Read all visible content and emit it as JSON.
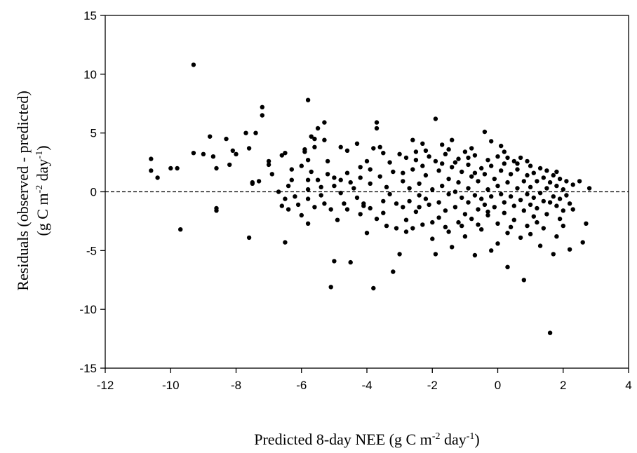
{
  "chart_data": {
    "type": "scatter",
    "xlabel": {
      "main": "Predicted 8-day NEE (g C m",
      "sup1": "-2",
      "mid": " day",
      "sup2": "-1",
      "end": ")"
    },
    "ylabel": {
      "line1": "Residuals (observed - predicted)",
      "line2": {
        "main": "(g C m",
        "sup1": "-2",
        "mid": " day",
        "sup2": "-1",
        "end": ")"
      }
    },
    "xlim": [
      -12,
      4
    ],
    "ylim": [
      -15,
      15
    ],
    "x_ticks": [
      "-12",
      "-10",
      "-8",
      "-6",
      "-4",
      "-2",
      "0",
      "2",
      "4"
    ],
    "y_ticks": [
      "15",
      "10",
      "5",
      "0",
      "-5",
      "-10",
      "-15"
    ],
    "reference_line": {
      "y": 0,
      "style": "dashed"
    },
    "marker_color": "#000000",
    "grid": false,
    "points_note_free": true,
    "points": [
      [
        -10.6,
        2.8
      ],
      [
        -10.6,
        1.8
      ],
      [
        -10.4,
        1.2
      ],
      [
        -10.0,
        2.0
      ],
      [
        -9.8,
        2.0
      ],
      [
        -9.7,
        -3.2
      ],
      [
        -9.3,
        10.8
      ],
      [
        -9.3,
        3.3
      ],
      [
        -9.0,
        3.2
      ],
      [
        -8.8,
        4.7
      ],
      [
        -8.7,
        3.0
      ],
      [
        -8.6,
        2.0
      ],
      [
        -8.6,
        -1.4
      ],
      [
        -8.6,
        -1.6
      ],
      [
        -8.3,
        4.5
      ],
      [
        -8.2,
        2.3
      ],
      [
        -8.1,
        3.5
      ],
      [
        -8.0,
        3.2
      ],
      [
        -7.7,
        5.0
      ],
      [
        -7.6,
        3.7
      ],
      [
        -7.6,
        -3.9
      ],
      [
        -7.5,
        0.8
      ],
      [
        -7.5,
        0.7
      ],
      [
        -7.4,
        5.0
      ],
      [
        -7.3,
        0.9
      ],
      [
        -7.2,
        7.2
      ],
      [
        -7.2,
        6.5
      ],
      [
        -7.0,
        2.6
      ],
      [
        -7.0,
        2.3
      ],
      [
        -6.9,
        1.5
      ],
      [
        -6.7,
        0.0
      ],
      [
        -6.6,
        3.1
      ],
      [
        -6.5,
        3.3
      ],
      [
        -6.5,
        -0.6
      ],
      [
        -6.6,
        -1.2
      ],
      [
        -6.4,
        0.5
      ],
      [
        -6.4,
        -1.5
      ],
      [
        -6.5,
        -4.3
      ],
      [
        -6.3,
        1.9
      ],
      [
        -6.3,
        1.0
      ],
      [
        -6.2,
        -0.4
      ],
      [
        -6.1,
        -1.1
      ],
      [
        -6.0,
        -2.0
      ],
      [
        -6.0,
        2.2
      ],
      [
        -5.9,
        3.6
      ],
      [
        -5.9,
        3.4
      ],
      [
        -5.8,
        7.8
      ],
      [
        -5.8,
        2.7
      ],
      [
        -5.8,
        1.0
      ],
      [
        -5.8,
        0.2
      ],
      [
        -5.8,
        -0.6
      ],
      [
        -5.8,
        -2.7
      ],
      [
        -5.7,
        4.7
      ],
      [
        -5.7,
        1.7
      ],
      [
        -5.6,
        4.5
      ],
      [
        -5.6,
        3.8
      ],
      [
        -5.6,
        -1.3
      ],
      [
        -5.5,
        5.4
      ],
      [
        -5.5,
        1.0
      ],
      [
        -5.4,
        0.4
      ],
      [
        -5.4,
        -0.3
      ],
      [
        -5.3,
        5.9
      ],
      [
        -5.3,
        4.4
      ],
      [
        -5.3,
        -1.0
      ],
      [
        -5.2,
        2.6
      ],
      [
        -5.2,
        1.5
      ],
      [
        -5.1,
        -1.5
      ],
      [
        -5.1,
        -8.1
      ],
      [
        -5.0,
        1.2
      ],
      [
        -5.0,
        0.5
      ],
      [
        -5.0,
        -5.9
      ],
      [
        -4.9,
        -2.4
      ],
      [
        -4.8,
        3.8
      ],
      [
        -4.8,
        1.0
      ],
      [
        -4.8,
        -0.1
      ],
      [
        -4.7,
        -1.0
      ],
      [
        -4.6,
        3.5
      ],
      [
        -4.6,
        -1.5
      ],
      [
        -4.5,
        -6.0
      ],
      [
        -4.5,
        0.8
      ],
      [
        -4.4,
        0.3
      ],
      [
        -4.3,
        4.1
      ],
      [
        -4.3,
        -0.5
      ],
      [
        -4.2,
        2.1
      ],
      [
        -4.2,
        1.2
      ],
      [
        -4.1,
        -1.0
      ],
      [
        -4.0,
        -3.5
      ],
      [
        -4.0,
        2.6
      ],
      [
        -3.9,
        0.7
      ],
      [
        -3.9,
        -1.4
      ],
      [
        -3.8,
        3.7
      ],
      [
        -3.8,
        -8.2
      ],
      [
        -3.7,
        5.9
      ],
      [
        -3.7,
        5.4
      ],
      [
        -3.7,
        -2.3
      ],
      [
        -3.6,
        3.8
      ],
      [
        -3.6,
        1.3
      ],
      [
        -3.5,
        -0.8
      ],
      [
        -3.5,
        -1.8
      ],
      [
        -3.4,
        0.4
      ],
      [
        -3.3,
        2.5
      ],
      [
        -3.3,
        -0.2
      ],
      [
        -3.2,
        -6.8
      ],
      [
        -3.2,
        1.7
      ],
      [
        -3.1,
        -3.1
      ],
      [
        -3.0,
        3.2
      ],
      [
        -3.0,
        -5.3
      ],
      [
        -2.9,
        0.9
      ],
      [
        -2.9,
        -1.3
      ],
      [
        -2.8,
        2.9
      ],
      [
        -2.8,
        -2.4
      ],
      [
        -2.7,
        0.3
      ],
      [
        -2.7,
        -0.8
      ],
      [
        -2.6,
        4.4
      ],
      [
        -2.6,
        1.9
      ],
      [
        -2.6,
        -3.1
      ],
      [
        -2.5,
        3.4
      ],
      [
        -2.5,
        -1.7
      ],
      [
        -2.4,
        0.7
      ],
      [
        -2.4,
        -0.3
      ],
      [
        -2.3,
        4.1
      ],
      [
        -2.3,
        2.2
      ],
      [
        -2.3,
        -2.8
      ],
      [
        -2.2,
        1.4
      ],
      [
        -2.2,
        -0.6
      ],
      [
        -2.1,
        3.0
      ],
      [
        -2.1,
        -1.1
      ],
      [
        -2.0,
        0.2
      ],
      [
        -2.0,
        -4.0
      ],
      [
        -1.9,
        6.2
      ],
      [
        -1.9,
        2.6
      ],
      [
        -1.9,
        -5.3
      ],
      [
        -1.8,
        1.8
      ],
      [
        -1.8,
        -0.9
      ],
      [
        -1.8,
        -2.2
      ],
      [
        -1.7,
        4.0
      ],
      [
        -1.7,
        0.5
      ],
      [
        -1.6,
        -1.6
      ],
      [
        -1.6,
        3.2
      ],
      [
        -1.5,
        -0.2
      ],
      [
        -1.5,
        1.1
      ],
      [
        -1.5,
        -3.4
      ],
      [
        -1.4,
        4.4
      ],
      [
        -1.4,
        2.1
      ],
      [
        -1.4,
        -4.7
      ],
      [
        -1.3,
        0.0
      ],
      [
        -1.3,
        -1.3
      ],
      [
        -1.2,
        2.8
      ],
      [
        -1.2,
        0.8
      ],
      [
        -1.2,
        -2.6
      ],
      [
        -1.1,
        -0.5
      ],
      [
        -1.1,
        1.7
      ],
      [
        -1.0,
        3.4
      ],
      [
        -1.0,
        -1.9
      ],
      [
        -1.0,
        -3.8
      ],
      [
        -0.9,
        0.3
      ],
      [
        -0.9,
        2.3
      ],
      [
        -0.9,
        -0.9
      ],
      [
        -0.8,
        1.3
      ],
      [
        -0.8,
        -2.3
      ],
      [
        -0.7,
        3.1
      ],
      [
        -0.7,
        -0.3
      ],
      [
        -0.7,
        -5.4
      ],
      [
        -0.6,
        0.9
      ],
      [
        -0.6,
        -1.5
      ],
      [
        -0.5,
        2.0
      ],
      [
        -0.5,
        -0.6
      ],
      [
        -0.5,
        -3.2
      ],
      [
        -0.4,
        5.1
      ],
      [
        -0.4,
        1.5
      ],
      [
        -0.4,
        -1.1
      ],
      [
        -0.3,
        0.2
      ],
      [
        -0.3,
        2.7
      ],
      [
        -0.3,
        -2.0
      ],
      [
        -0.2,
        4.3
      ],
      [
        -0.2,
        -0.4
      ],
      [
        -0.2,
        -5.0
      ],
      [
        -0.1,
        1.1
      ],
      [
        -0.1,
        -1.3
      ],
      [
        0.0,
        3.0
      ],
      [
        0.0,
        0.5
      ],
      [
        0.0,
        -2.7
      ],
      [
        0.0,
        -4.4
      ],
      [
        0.1,
        3.9
      ],
      [
        0.1,
        -0.2
      ],
      [
        0.1,
        1.8
      ],
      [
        0.2,
        -0.9
      ],
      [
        0.2,
        2.4
      ],
      [
        0.2,
        -1.8
      ],
      [
        0.3,
        0.8
      ],
      [
        0.3,
        -6.4
      ],
      [
        0.3,
        -3.5
      ],
      [
        0.4,
        1.5
      ],
      [
        0.4,
        -0.4
      ],
      [
        0.5,
        2.6
      ],
      [
        0.5,
        -1.2
      ],
      [
        0.5,
        -2.4
      ],
      [
        0.6,
        0.3
      ],
      [
        0.6,
        1.9
      ],
      [
        0.7,
        -0.7
      ],
      [
        0.7,
        -3.9
      ],
      [
        0.7,
        2.9
      ],
      [
        0.8,
        0.9
      ],
      [
        0.8,
        -1.6
      ],
      [
        0.8,
        -7.5
      ],
      [
        0.9,
        1.4
      ],
      [
        0.9,
        -0.2
      ],
      [
        0.9,
        -2.9
      ],
      [
        1.0,
        2.2
      ],
      [
        1.0,
        0.4
      ],
      [
        1.0,
        -1.1
      ],
      [
        1.1,
        1.6
      ],
      [
        1.1,
        -0.5
      ],
      [
        1.1,
        -2.1
      ],
      [
        1.2,
        0.9
      ],
      [
        1.2,
        -1.4
      ],
      [
        1.3,
        2.0
      ],
      [
        1.3,
        -0.1
      ],
      [
        1.3,
        -4.6
      ],
      [
        1.4,
        1.2
      ],
      [
        1.4,
        -0.8
      ],
      [
        1.5,
        1.8
      ],
      [
        1.5,
        0.3
      ],
      [
        1.5,
        -1.9
      ],
      [
        1.6,
        -12.0
      ],
      [
        1.6,
        0.8
      ],
      [
        1.6,
        -0.9
      ],
      [
        1.7,
        1.4
      ],
      [
        1.7,
        -0.4
      ],
      [
        1.7,
        -5.3
      ],
      [
        1.8,
        0.5
      ],
      [
        1.8,
        -1.2
      ],
      [
        1.8,
        -3.8
      ],
      [
        1.9,
        1.1
      ],
      [
        1.9,
        -0.6
      ],
      [
        2.0,
        0.2
      ],
      [
        2.0,
        -1.6
      ],
      [
        2.0,
        -2.9
      ],
      [
        2.1,
        0.9
      ],
      [
        2.1,
        -0.3
      ],
      [
        2.2,
        -1.0
      ],
      [
        2.2,
        -4.9
      ],
      [
        2.3,
        0.6
      ],
      [
        2.3,
        -1.5
      ],
      [
        2.5,
        0.9
      ],
      [
        2.6,
        -4.3
      ],
      [
        2.7,
        -2.7
      ],
      [
        2.8,
        0.3
      ],
      [
        -4.2,
        -1.9
      ],
      [
        -3.4,
        -2.9
      ],
      [
        -2.8,
        -3.4
      ],
      [
        -2.4,
        -1.3
      ],
      [
        -2.0,
        -2.6
      ],
      [
        -1.6,
        -3.0
      ],
      [
        -1.3,
        2.5
      ],
      [
        -0.9,
        2.9
      ],
      [
        -0.6,
        -2.8
      ],
      [
        -0.2,
        2.2
      ],
      [
        0.4,
        -3.0
      ],
      [
        0.6,
        2.4
      ],
      [
        1.2,
        -2.6
      ],
      [
        1.9,
        -2.3
      ],
      [
        -3.9,
        1.9
      ],
      [
        -3.5,
        3.3
      ],
      [
        -2.9,
        1.6
      ],
      [
        -2.5,
        2.7
      ],
      [
        -1.7,
        2.4
      ],
      [
        -1.1,
        -2.9
      ],
      [
        -0.7,
        1.6
      ],
      [
        -0.3,
        -1.7
      ],
      [
        0.3,
        2.9
      ],
      [
        0.9,
        2.6
      ],
      [
        1.4,
        -3.1
      ],
      [
        1.8,
        1.7
      ],
      [
        -4.6,
        1.6
      ],
      [
        -4.1,
        -1.2
      ],
      [
        -3.1,
        -1.0
      ],
      [
        -2.2,
        3.5
      ],
      [
        -1.5,
        3.6
      ],
      [
        -0.8,
        3.7
      ],
      [
        0.2,
        3.4
      ],
      [
        1.0,
        -3.6
      ]
    ]
  }
}
